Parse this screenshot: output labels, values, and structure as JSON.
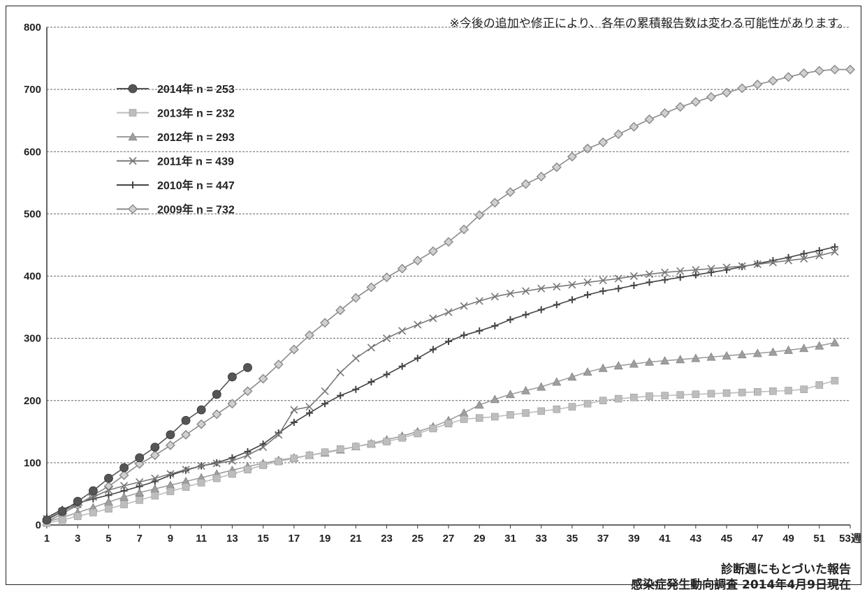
{
  "note": "※今後の追加や修正により、各年の累積報告数は変わる可能性があります。",
  "footer_line1": "診断週にもとづいた報告",
  "footer_line2": "感染症発生動向調査 2014年4月9日現在",
  "chart_data": {
    "type": "line",
    "xlabel": "週",
    "ylabel": "",
    "ylim": [
      0,
      800
    ],
    "xlim": [
      1,
      53
    ],
    "yticks": [
      0,
      100,
      200,
      300,
      400,
      500,
      600,
      700,
      800
    ],
    "xticks": [
      1,
      3,
      5,
      7,
      9,
      11,
      13,
      15,
      17,
      19,
      21,
      23,
      25,
      27,
      29,
      31,
      33,
      35,
      37,
      39,
      41,
      43,
      45,
      47,
      49,
      51,
      53
    ],
    "x_last_label": "53週",
    "grid": "horizontal",
    "legend_position": "top-left",
    "series": [
      {
        "name": "2014年 n = 253",
        "color": "#555555",
        "marker": "circle",
        "x": [
          1,
          2,
          3,
          4,
          5,
          6,
          7,
          8,
          9,
          10,
          11,
          12,
          13,
          14
        ],
        "values": [
          8,
          22,
          38,
          55,
          75,
          92,
          108,
          125,
          145,
          168,
          185,
          210,
          238,
          253
        ]
      },
      {
        "name": "2013年 n = 232",
        "color": "#bdbdbd",
        "marker": "square",
        "x": [
          1,
          2,
          3,
          4,
          5,
          6,
          7,
          8,
          9,
          10,
          11,
          12,
          13,
          14,
          15,
          16,
          17,
          18,
          19,
          20,
          21,
          22,
          23,
          24,
          25,
          26,
          27,
          28,
          29,
          30,
          31,
          32,
          33,
          34,
          35,
          36,
          37,
          38,
          39,
          40,
          41,
          42,
          43,
          44,
          45,
          46,
          47,
          48,
          49,
          50,
          51,
          52
        ],
        "values": [
          3,
          8,
          14,
          20,
          26,
          33,
          40,
          47,
          54,
          61,
          68,
          75,
          82,
          89,
          96,
          102,
          107,
          112,
          117,
          122,
          126,
          130,
          134,
          140,
          147,
          155,
          163,
          170,
          172,
          174,
          177,
          180,
          183,
          186,
          190,
          195,
          200,
          203,
          205,
          207,
          208,
          209,
          210,
          211,
          212,
          213,
          214,
          215,
          216,
          218,
          225,
          232
        ]
      },
      {
        "name": "2012年 n = 293",
        "color": "#9e9e9e",
        "marker": "triangle",
        "x": [
          1,
          2,
          3,
          4,
          5,
          6,
          7,
          8,
          9,
          10,
          11,
          12,
          13,
          14,
          15,
          16,
          17,
          18,
          19,
          20,
          21,
          22,
          23,
          24,
          25,
          26,
          27,
          28,
          29,
          30,
          31,
          32,
          33,
          34,
          35,
          36,
          37,
          38,
          39,
          40,
          41,
          42,
          43,
          44,
          45,
          46,
          47,
          48,
          49,
          50,
          51,
          52
        ],
        "values": [
          5,
          12,
          20,
          28,
          37,
          45,
          52,
          58,
          64,
          70,
          76,
          82,
          88,
          94,
          99,
          104,
          108,
          112,
          116,
          121,
          126,
          131,
          137,
          143,
          150,
          158,
          168,
          180,
          193,
          202,
          210,
          216,
          222,
          230,
          238,
          246,
          252,
          256,
          259,
          262,
          264,
          266,
          268,
          270,
          272,
          274,
          276,
          278,
          281,
          284,
          288,
          293
        ]
      },
      {
        "name": "2011年 n = 439",
        "color": "#777777",
        "marker": "x",
        "x": [
          1,
          2,
          3,
          4,
          5,
          6,
          7,
          8,
          9,
          10,
          11,
          12,
          13,
          14,
          15,
          16,
          17,
          18,
          19,
          20,
          21,
          22,
          23,
          24,
          25,
          26,
          27,
          28,
          29,
          30,
          31,
          32,
          33,
          34,
          35,
          36,
          37,
          38,
          39,
          40,
          41,
          42,
          43,
          44,
          45,
          46,
          47,
          48,
          49,
          50,
          51,
          52
        ],
        "values": [
          10,
          22,
          33,
          45,
          56,
          63,
          69,
          75,
          82,
          89,
          95,
          99,
          103,
          112,
          125,
          145,
          185,
          190,
          215,
          245,
          268,
          285,
          300,
          312,
          322,
          332,
          342,
          352,
          360,
          367,
          372,
          376,
          380,
          383,
          386,
          390,
          393,
          396,
          400,
          403,
          406,
          408,
          410,
          412,
          414,
          416,
          419,
          422,
          425,
          428,
          433,
          439
        ]
      },
      {
        "name": "2010年 n = 447",
        "color": "#444444",
        "marker": "plus",
        "x": [
          1,
          2,
          3,
          4,
          5,
          6,
          7,
          8,
          9,
          10,
          11,
          12,
          13,
          14,
          15,
          16,
          17,
          18,
          19,
          20,
          21,
          22,
          23,
          24,
          25,
          26,
          27,
          28,
          29,
          30,
          31,
          32,
          33,
          34,
          35,
          36,
          37,
          38,
          39,
          40,
          41,
          42,
          43,
          44,
          45,
          46,
          47,
          48,
          49,
          50,
          51,
          52
        ],
        "values": [
          12,
          25,
          35,
          42,
          48,
          55,
          62,
          70,
          80,
          88,
          95,
          100,
          108,
          118,
          130,
          148,
          165,
          180,
          195,
          208,
          218,
          230,
          242,
          255,
          268,
          282,
          295,
          305,
          312,
          320,
          330,
          338,
          346,
          354,
          362,
          370,
          376,
          380,
          385,
          390,
          394,
          398,
          402,
          406,
          410,
          415,
          420,
          425,
          430,
          436,
          441,
          447
        ]
      },
      {
        "name": "2009年 n = 732",
        "color": "#8a8a8a",
        "marker": "diamond",
        "x": [
          1,
          2,
          3,
          4,
          5,
          6,
          7,
          8,
          9,
          10,
          11,
          12,
          13,
          14,
          15,
          16,
          17,
          18,
          19,
          20,
          21,
          22,
          23,
          24,
          25,
          26,
          27,
          28,
          29,
          30,
          31,
          32,
          33,
          34,
          35,
          36,
          37,
          38,
          39,
          40,
          41,
          42,
          43,
          44,
          45,
          46,
          47,
          48,
          49,
          50,
          51,
          52,
          53
        ],
        "values": [
          5,
          18,
          32,
          48,
          62,
          80,
          98,
          112,
          128,
          145,
          162,
          178,
          195,
          215,
          235,
          258,
          282,
          305,
          325,
          345,
          365,
          382,
          398,
          412,
          425,
          440,
          455,
          475,
          498,
          518,
          535,
          548,
          560,
          575,
          592,
          605,
          615,
          628,
          640,
          652,
          662,
          672,
          680,
          688,
          695,
          702,
          708,
          714,
          720,
          726,
          730,
          732,
          732
        ]
      }
    ]
  }
}
